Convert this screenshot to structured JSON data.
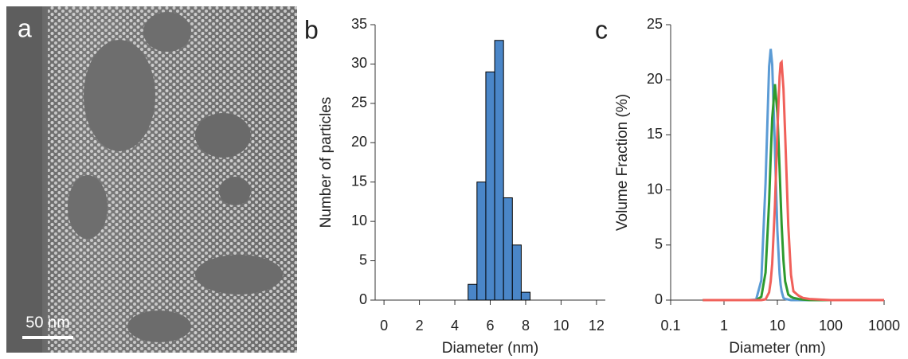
{
  "image": {
    "label": "a",
    "scale_bar": "50 nm"
  },
  "chart_data": [
    {
      "type": "histogram",
      "label": "b",
      "xlabel": "Diameter (nm)",
      "ylabel": "Number of particles",
      "bins": [
        4.75,
        5.25,
        5.75,
        6.25,
        6.75,
        7.25,
        7.75,
        8.25
      ],
      "values": [
        2,
        15,
        29,
        33,
        13,
        7,
        1
      ],
      "color": "#4a86c8",
      "edge_color": "#000000",
      "xlim": [
        -0.5,
        12.5
      ],
      "xticks": [
        0,
        2,
        4,
        6,
        8,
        10,
        12
      ],
      "ylim": [
        0,
        35
      ],
      "yticks": [
        0,
        5,
        10,
        15,
        20,
        25,
        30,
        35
      ]
    },
    {
      "type": "line",
      "label": "c",
      "xlabel": "Diameter (nm)",
      "ylabel": "Volume Fraction (%)",
      "xscale": "log",
      "x": [
        0.4,
        1,
        2,
        3,
        4,
        5,
        6,
        7,
        7.5,
        8,
        9,
        10,
        11,
        11.5,
        12,
        13,
        14,
        16,
        18,
        20,
        25,
        30,
        40,
        60,
        100,
        1000
      ],
      "series": [
        {
          "color": "#5b9bd5",
          "values": [
            0,
            0,
            0,
            0,
            0.05,
            1.8,
            10.6,
            21.2,
            22.8,
            21.4,
            13.7,
            6.3,
            2.4,
            1.4,
            0.8,
            0.2,
            0.1,
            0.05,
            0,
            0,
            0,
            0,
            0,
            0,
            0,
            0
          ]
        },
        {
          "color": "#2e9a2e",
          "values": [
            0,
            0,
            0,
            0,
            0,
            0.3,
            2.5,
            8.9,
            13.0,
            16.5,
            19.6,
            17.0,
            11.9,
            9.3,
            6.9,
            3.6,
            1.7,
            0.5,
            0.3,
            0.2,
            0.1,
            0.05,
            0,
            0,
            0,
            0
          ]
        },
        {
          "color": "#f0605a",
          "values": [
            0,
            0,
            0,
            0,
            0,
            0,
            0.07,
            0.7,
            1.7,
            3.3,
            8.6,
            15.3,
            20.3,
            21.5,
            21.6,
            19.2,
            15.0,
            6.8,
            2.3,
            0.8,
            0.4,
            0.2,
            0.1,
            0.05,
            0,
            0
          ]
        }
      ],
      "xlim": [
        0.1,
        1000
      ],
      "xticks": [
        0.1,
        1,
        10,
        100,
        1000
      ],
      "ylim": [
        0,
        25
      ],
      "yticks": [
        0,
        5,
        10,
        15,
        20,
        25
      ]
    }
  ]
}
